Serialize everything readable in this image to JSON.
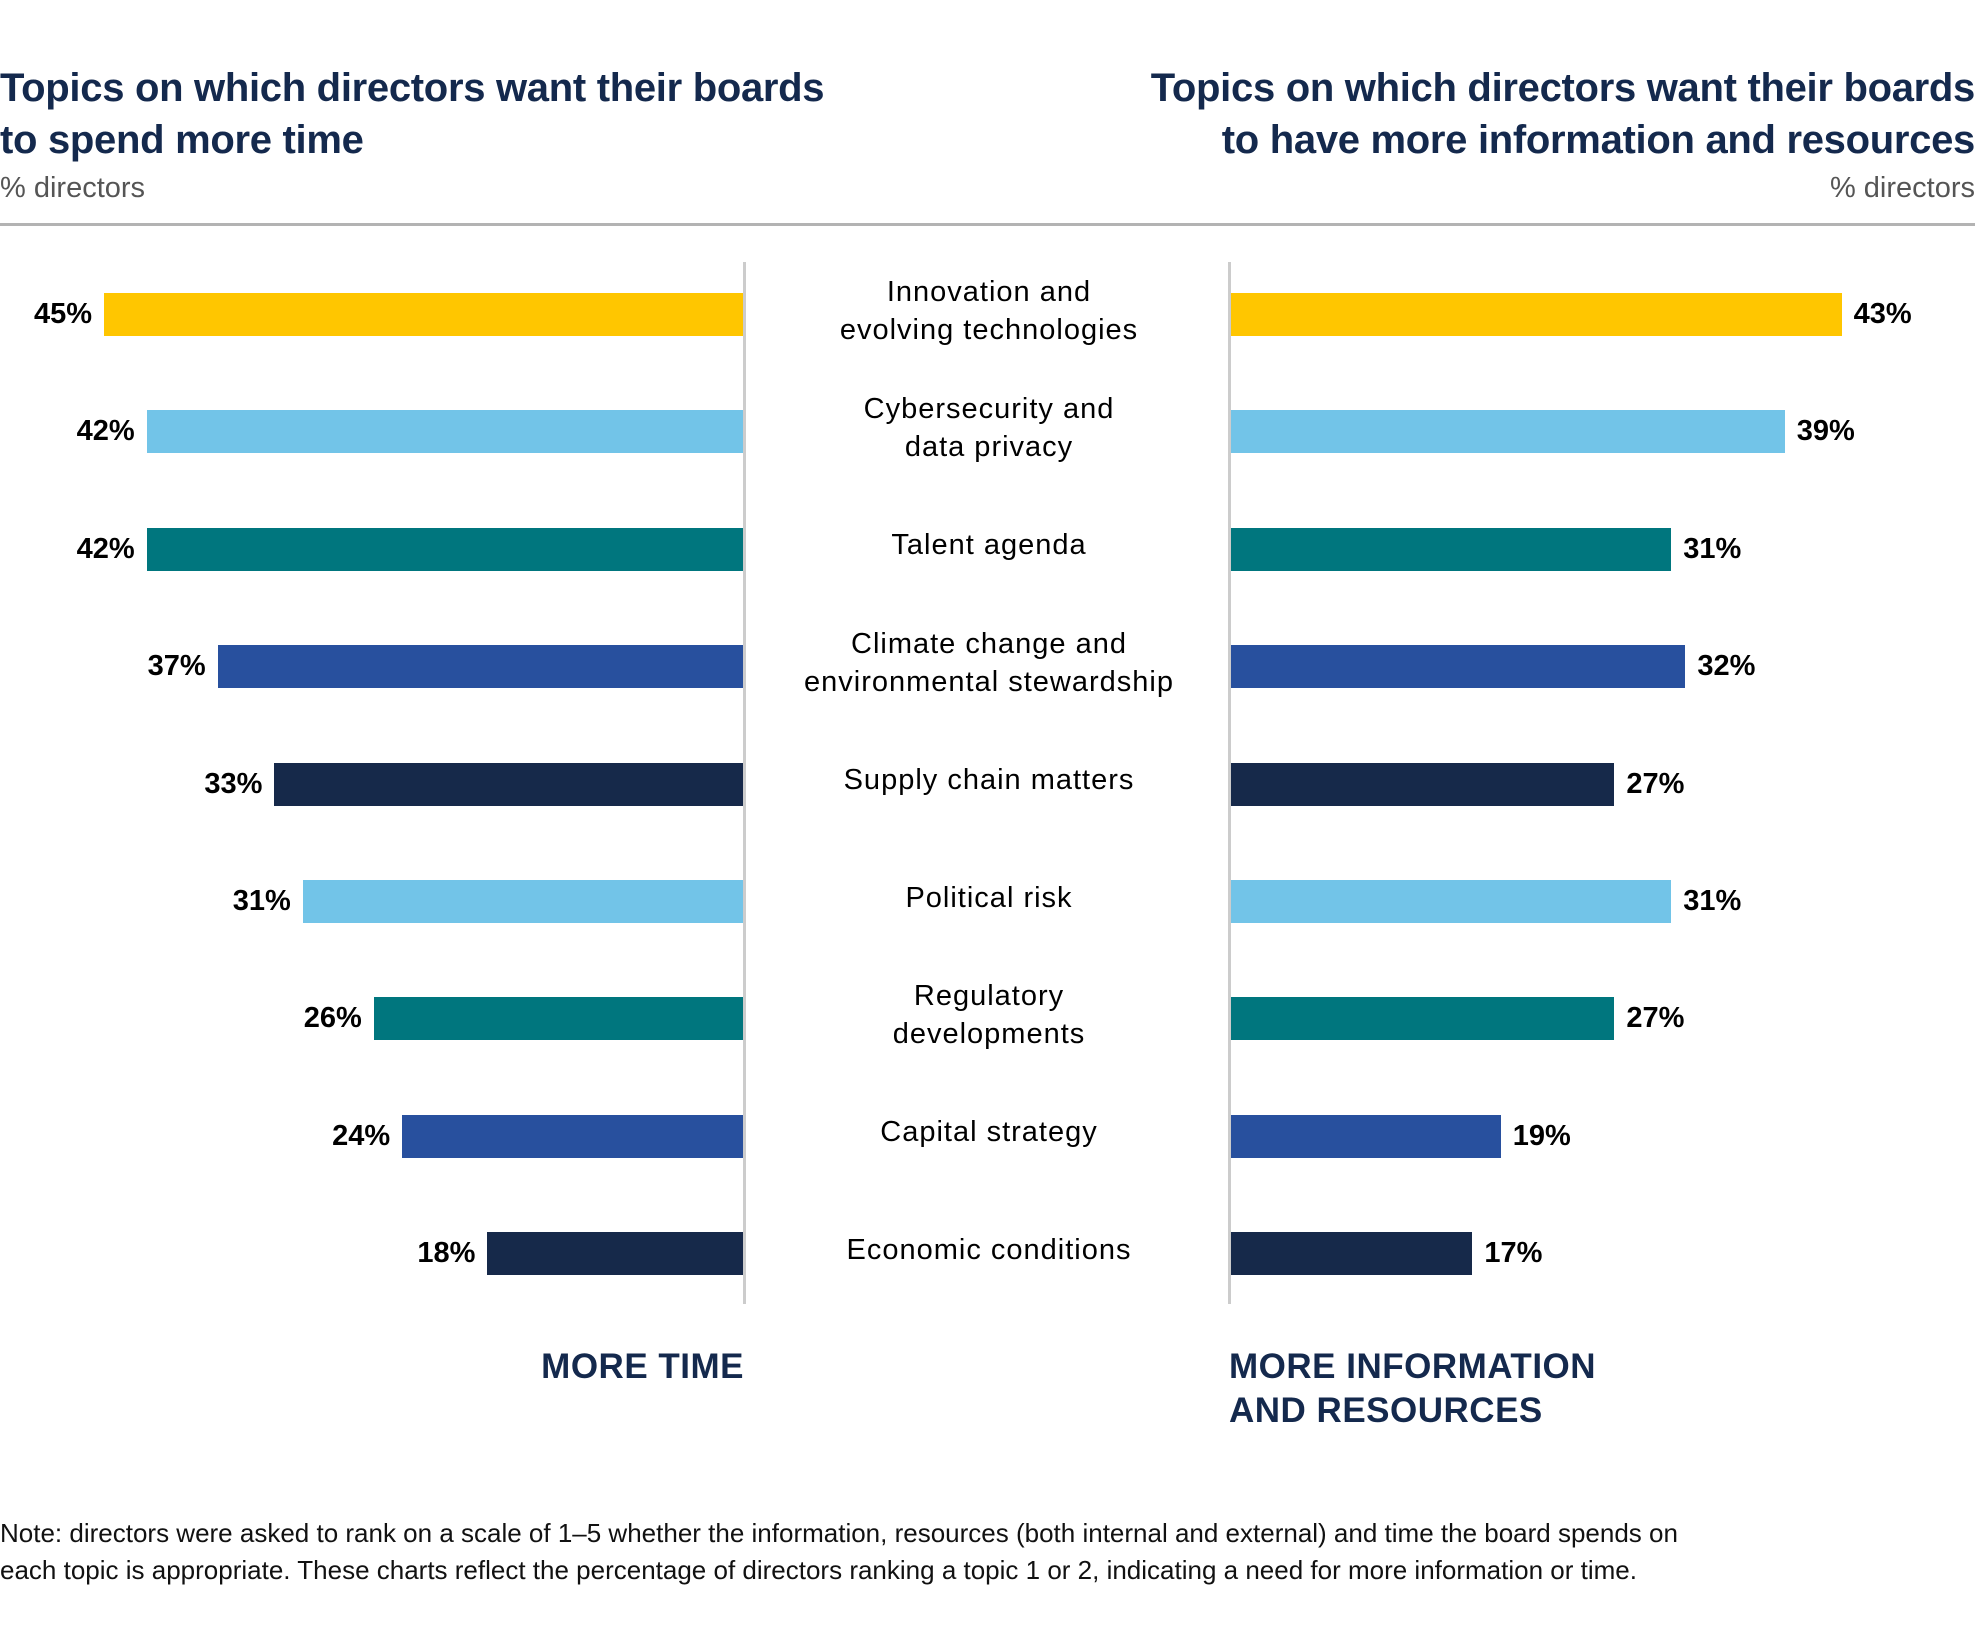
{
  "left_panel": {
    "title_line1": "Topics on which directors want their boards",
    "title_line2": "to spend more time",
    "subtitle": "% directors",
    "footer_label": "MORE TIME"
  },
  "right_panel": {
    "title_line1": "Topics on which directors want their boards",
    "title_line2": "to have more information and resources",
    "subtitle": "% directors",
    "footer_label_line1": "MORE INFORMATION",
    "footer_label_line2": "AND RESOURCES"
  },
  "note": {
    "line1": "Note: directors were asked to rank on a scale of 1–5 whether the information, resources (both internal and external) and time the board spends on",
    "line2": "each topic is appropriate. These charts reflect the percentage of directors ranking a topic 1 or 2, indicating a need for more information or time."
  },
  "chart_data": {
    "type": "bar",
    "orientation": "horizontal-butterfly",
    "categories": [
      [
        "Innovation and",
        "evolving technologies"
      ],
      [
        "Cybersecurity and",
        "data privacy"
      ],
      [
        "Talent agenda"
      ],
      [
        "Climate change and",
        "environmental stewardship"
      ],
      [
        "Supply chain matters"
      ],
      [
        "Political risk"
      ],
      [
        "Regulatory",
        "developments"
      ],
      [
        "Capital strategy"
      ],
      [
        "Economic conditions"
      ]
    ],
    "series": [
      {
        "name": "More time",
        "direction": "left",
        "values": [
          45,
          42,
          42,
          37,
          33,
          31,
          26,
          24,
          18
        ],
        "labels": [
          "45%",
          "42%",
          "42%",
          "37%",
          "33%",
          "31%",
          "26%",
          "24%",
          "18%"
        ]
      },
      {
        "name": "More information and resources",
        "direction": "right",
        "values": [
          43,
          39,
          31,
          32,
          27,
          31,
          27,
          19,
          17
        ],
        "labels": [
          "43%",
          "39%",
          "31%",
          "32%",
          "27%",
          "31%",
          "27%",
          "19%",
          "17%"
        ]
      }
    ],
    "bar_colors": [
      "#FFC600",
      "#72C4E8",
      "#00767E",
      "#28509E",
      "#16294A",
      "#72C4E8",
      "#00767E",
      "#28509E",
      "#16294A"
    ],
    "unit": "% directors",
    "xlim": [
      0,
      45
    ],
    "grid": false,
    "legend": "none"
  }
}
